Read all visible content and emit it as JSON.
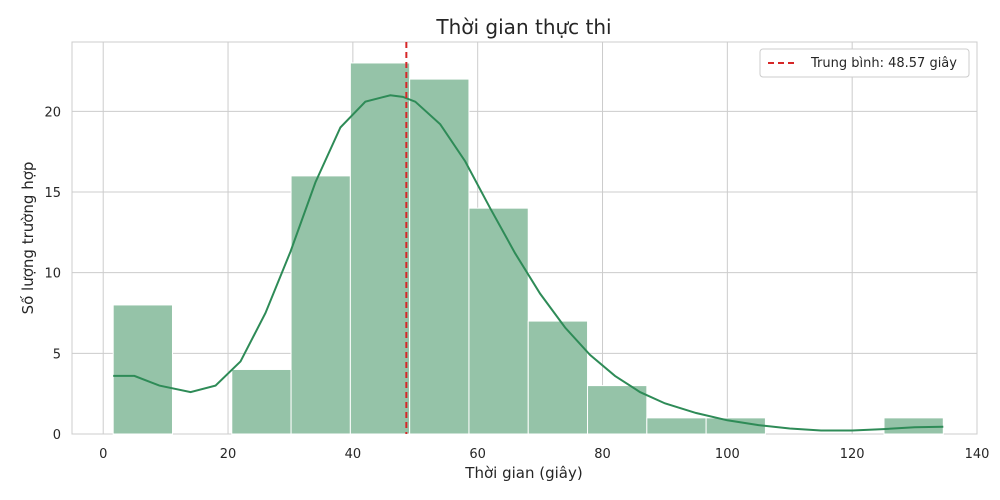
{
  "chart_data": {
    "type": "bar",
    "title": "Thời gian thực thi",
    "xlabel": "Thời gian (giây)",
    "ylabel": "Số lượng trường hợp",
    "xlim": [
      -5,
      140
    ],
    "ylim": [
      0,
      24.3
    ],
    "xticks": [
      0,
      20,
      40,
      60,
      80,
      100,
      120,
      140
    ],
    "yticks": [
      0,
      5,
      10,
      15,
      20
    ],
    "grid": true,
    "legend_position": "top-right",
    "bins": [
      {
        "x0": 1.6,
        "x1": 11.1,
        "count": 8
      },
      {
        "x0": 11.1,
        "x1": 20.6,
        "count": 0
      },
      {
        "x0": 20.6,
        "x1": 30.1,
        "count": 4
      },
      {
        "x0": 30.1,
        "x1": 39.6,
        "count": 16
      },
      {
        "x0": 39.6,
        "x1": 49.1,
        "count": 23
      },
      {
        "x0": 49.1,
        "x1": 58.6,
        "count": 22
      },
      {
        "x0": 58.6,
        "x1": 68.1,
        "count": 14
      },
      {
        "x0": 68.1,
        "x1": 77.6,
        "count": 7
      },
      {
        "x0": 77.6,
        "x1": 87.1,
        "count": 3
      },
      {
        "x0": 87.1,
        "x1": 96.6,
        "count": 1
      },
      {
        "x0": 96.6,
        "x1": 106.1,
        "count": 1
      },
      {
        "x0": 106.1,
        "x1": 115.6,
        "count": 0
      },
      {
        "x0": 115.6,
        "x1": 125.1,
        "count": 0
      },
      {
        "x0": 125.1,
        "x1": 134.6,
        "count": 1
      }
    ],
    "kde": {
      "x": [
        1.6,
        5,
        9,
        14,
        18,
        22,
        26,
        30,
        34,
        38,
        42,
        46,
        48,
        50,
        54,
        58,
        62,
        66,
        70,
        74,
        78,
        82,
        86,
        90,
        95,
        100,
        105,
        110,
        115,
        120,
        125,
        130,
        134.6
      ],
      "y": [
        3.6,
        3.6,
        3.0,
        2.6,
        3.0,
        4.5,
        7.5,
        11.3,
        15.6,
        19.0,
        20.6,
        21.0,
        20.9,
        20.6,
        19.2,
        16.9,
        14.0,
        11.2,
        8.7,
        6.6,
        4.9,
        3.6,
        2.6,
        1.9,
        1.3,
        0.85,
        0.55,
        0.34,
        0.22,
        0.22,
        0.3,
        0.42,
        0.45
      ]
    },
    "mean": {
      "value": 48.57,
      "label": "Trung bình: 48.57 giây"
    },
    "colors": {
      "bar_fill": "#95c3a8",
      "bar_edge": "#ffffff",
      "kde_line": "#2e8b57",
      "mean_line": "#d62728",
      "grid": "#cccccc",
      "axes_edge": "#cccccc",
      "text": "#262626",
      "legend_border": "#cccccc"
    }
  }
}
